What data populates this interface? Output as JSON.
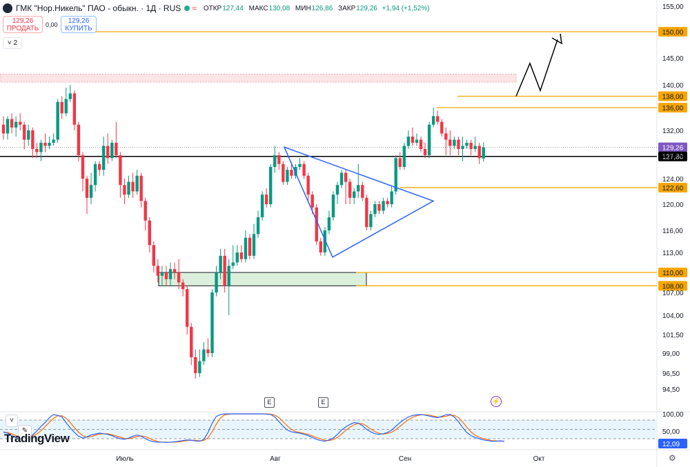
{
  "header": {
    "title": "ГМК \"Нор.Никель\" ПАО - обыкн. · 1Д · RUS",
    "ohlc": [
      {
        "key": "ОТКР",
        "value": "127,44"
      },
      {
        "key": "МАКС",
        "value": "130,08"
      },
      {
        "key": "МИН",
        "value": "126,86"
      },
      {
        "key": "ЗАКР",
        "value": "129,26"
      },
      {
        "key": "",
        "value": "+1,94 (+1,52%)"
      }
    ]
  },
  "trade": {
    "sell_price": "129,26",
    "sell_label": "ПРОДАТЬ",
    "spread": "0,00",
    "buy_price": "129,26",
    "buy_label": "КУПИТЬ"
  },
  "indicators_count": "2",
  "logo_text": "TradingView",
  "event_markers": [
    "E",
    "E"
  ],
  "colors": {
    "up": "#089981",
    "down": "#f23645",
    "level": "#f7a600",
    "pattern": "#2962ff"
  },
  "chart_data": {
    "type": "candlestick",
    "x_labels": [
      "Июль",
      "Авг",
      "Сен",
      "Окт"
    ],
    "y_ticks": [
      "155,00",
      "150,00",
      "145,00",
      "140,00",
      "136,00",
      "132,00",
      "128,00",
      "124,00",
      "120,00",
      "116,00",
      "113,00",
      "110,00",
      "107,00",
      "104,00",
      "101,50",
      "99,00",
      "96,50",
      "94,50"
    ],
    "candles": [
      {
        "o": 133.0,
        "c": 131.5,
        "h": 134.5,
        "l": 130.5
      },
      {
        "o": 131.5,
        "c": 134.0,
        "h": 134.5,
        "l": 130.5
      },
      {
        "o": 134.0,
        "c": 132.5,
        "h": 135.0,
        "l": 131.5
      },
      {
        "o": 132.5,
        "c": 133.5,
        "h": 134.5,
        "l": 131.0
      },
      {
        "o": 133.5,
        "c": 133.0,
        "h": 135.0,
        "l": 132.0
      },
      {
        "o": 133.0,
        "c": 130.5,
        "h": 133.5,
        "l": 129.0
      },
      {
        "o": 130.5,
        "c": 132.0,
        "h": 133.0,
        "l": 129.5
      },
      {
        "o": 132.0,
        "c": 129.0,
        "h": 132.5,
        "l": 127.5
      },
      {
        "o": 129.0,
        "c": 128.5,
        "h": 130.0,
        "l": 127.5
      },
      {
        "o": 128.5,
        "c": 130.0,
        "h": 130.5,
        "l": 127.0
      },
      {
        "o": 130.0,
        "c": 129.5,
        "h": 131.5,
        "l": 128.5
      },
      {
        "o": 129.5,
        "c": 130.0,
        "h": 131.0,
        "l": 129.0
      },
      {
        "o": 130.0,
        "c": 130.5,
        "h": 131.5,
        "l": 129.5
      },
      {
        "o": 130.5,
        "c": 137.0,
        "h": 137.5,
        "l": 130.0
      },
      {
        "o": 137.0,
        "c": 135.0,
        "h": 138.0,
        "l": 134.0
      },
      {
        "o": 135.0,
        "c": 137.5,
        "h": 139.5,
        "l": 134.5
      },
      {
        "o": 137.5,
        "c": 138.5,
        "h": 140.0,
        "l": 137.0
      },
      {
        "o": 138.5,
        "c": 133.0,
        "h": 139.0,
        "l": 132.0
      },
      {
        "o": 133.0,
        "c": 128.0,
        "h": 133.5,
        "l": 127.0
      },
      {
        "o": 128.0,
        "c": 124.0,
        "h": 128.5,
        "l": 122.0
      },
      {
        "o": 124.0,
        "c": 121.0,
        "h": 124.5,
        "l": 118.5
      },
      {
        "o": 121.0,
        "c": 123.0,
        "h": 125.0,
        "l": 120.0
      },
      {
        "o": 123.0,
        "c": 126.5,
        "h": 127.0,
        "l": 122.0
      },
      {
        "o": 126.5,
        "c": 125.5,
        "h": 127.0,
        "l": 124.5
      },
      {
        "o": 125.5,
        "c": 129.5,
        "h": 131.0,
        "l": 124.5
      },
      {
        "o": 129.5,
        "c": 127.5,
        "h": 131.5,
        "l": 126.5
      },
      {
        "o": 127.5,
        "c": 130.0,
        "h": 130.5,
        "l": 127.0
      },
      {
        "o": 130.0,
        "c": 128.0,
        "h": 133.5,
        "l": 127.5
      },
      {
        "o": 128.0,
        "c": 123.0,
        "h": 128.5,
        "l": 121.0
      },
      {
        "o": 123.0,
        "c": 121.5,
        "h": 124.0,
        "l": 120.0
      },
      {
        "o": 121.5,
        "c": 123.5,
        "h": 124.5,
        "l": 121.0
      },
      {
        "o": 123.5,
        "c": 122.0,
        "h": 125.0,
        "l": 121.0
      },
      {
        "o": 122.0,
        "c": 124.5,
        "h": 125.5,
        "l": 121.5
      },
      {
        "o": 124.5,
        "c": 120.5,
        "h": 125.0,
        "l": 119.5
      },
      {
        "o": 120.5,
        "c": 117.5,
        "h": 121.0,
        "l": 116.0
      },
      {
        "o": 117.5,
        "c": 114.0,
        "h": 118.0,
        "l": 113.0
      },
      {
        "o": 114.0,
        "c": 111.0,
        "h": 114.5,
        "l": 110.0
      },
      {
        "o": 111.0,
        "c": 109.5,
        "h": 112.0,
        "l": 108.5
      },
      {
        "o": 109.5,
        "c": 110.0,
        "h": 111.0,
        "l": 108.0
      },
      {
        "o": 110.0,
        "c": 109.0,
        "h": 111.0,
        "l": 108.0
      },
      {
        "o": 109.0,
        "c": 110.5,
        "h": 111.5,
        "l": 108.0
      },
      {
        "o": 110.5,
        "c": 110.0,
        "h": 111.5,
        "l": 109.0
      },
      {
        "o": 110.0,
        "c": 108.5,
        "h": 112.0,
        "l": 107.5
      },
      {
        "o": 108.5,
        "c": 107.5,
        "h": 109.0,
        "l": 106.5
      },
      {
        "o": 107.5,
        "c": 102.5,
        "h": 108.0,
        "l": 101.5
      },
      {
        "o": 102.5,
        "c": 98.5,
        "h": 103.0,
        "l": 97.5
      },
      {
        "o": 98.5,
        "c": 96.5,
        "h": 99.5,
        "l": 95.8
      },
      {
        "o": 96.5,
        "c": 98.0,
        "h": 99.5,
        "l": 96.0
      },
      {
        "o": 98.0,
        "c": 99.5,
        "h": 100.5,
        "l": 97.5
      },
      {
        "o": 99.5,
        "c": 99.0,
        "h": 101.0,
        "l": 98.5
      },
      {
        "o": 99.0,
        "c": 107.0,
        "h": 107.5,
        "l": 98.5
      },
      {
        "o": 107.0,
        "c": 110.0,
        "h": 111.0,
        "l": 106.5
      },
      {
        "o": 110.0,
        "c": 112.5,
        "h": 113.5,
        "l": 109.0
      },
      {
        "o": 112.5,
        "c": 108.0,
        "h": 113.5,
        "l": 107.0
      },
      {
        "o": 108.0,
        "c": 111.0,
        "h": 112.0,
        "l": 104.0
      },
      {
        "o": 111.0,
        "c": 111.5,
        "h": 114.0,
        "l": 110.5
      },
      {
        "o": 111.5,
        "c": 113.0,
        "h": 114.0,
        "l": 111.0
      },
      {
        "o": 113.0,
        "c": 112.0,
        "h": 114.0,
        "l": 111.5
      },
      {
        "o": 112.0,
        "c": 115.0,
        "h": 116.0,
        "l": 111.5
      },
      {
        "o": 115.0,
        "c": 112.5,
        "h": 115.5,
        "l": 112.0
      },
      {
        "o": 112.5,
        "c": 115.5,
        "h": 117.0,
        "l": 112.0
      },
      {
        "o": 115.5,
        "c": 118.0,
        "h": 119.0,
        "l": 115.0
      },
      {
        "o": 118.0,
        "c": 121.5,
        "h": 122.0,
        "l": 117.5
      },
      {
        "o": 121.5,
        "c": 120.0,
        "h": 122.5,
        "l": 119.5
      },
      {
        "o": 120.0,
        "c": 126.0,
        "h": 126.5,
        "l": 119.5
      },
      {
        "o": 126.0,
        "c": 128.0,
        "h": 129.5,
        "l": 125.0
      },
      {
        "o": 128.0,
        "c": 126.5,
        "h": 128.5,
        "l": 125.5
      },
      {
        "o": 126.5,
        "c": 123.5,
        "h": 127.0,
        "l": 123.0
      },
      {
        "o": 123.5,
        "c": 125.5,
        "h": 126.0,
        "l": 123.0
      },
      {
        "o": 125.5,
        "c": 124.5,
        "h": 126.5,
        "l": 124.0
      },
      {
        "o": 124.5,
        "c": 126.0,
        "h": 126.5,
        "l": 124.0
      },
      {
        "o": 126.0,
        "c": 126.5,
        "h": 127.5,
        "l": 125.5
      },
      {
        "o": 126.5,
        "c": 124.5,
        "h": 127.0,
        "l": 124.0
      },
      {
        "o": 124.5,
        "c": 121.5,
        "h": 125.0,
        "l": 120.5
      },
      {
        "o": 121.5,
        "c": 119.5,
        "h": 122.0,
        "l": 118.5
      },
      {
        "o": 119.5,
        "c": 114.5,
        "h": 120.0,
        "l": 114.0
      },
      {
        "o": 114.5,
        "c": 113.0,
        "h": 115.0,
        "l": 112.5
      },
      {
        "o": 113.0,
        "c": 116.0,
        "h": 116.5,
        "l": 112.5
      },
      {
        "o": 116.0,
        "c": 118.0,
        "h": 119.0,
        "l": 115.5
      },
      {
        "o": 118.0,
        "c": 121.5,
        "h": 122.0,
        "l": 117.5
      },
      {
        "o": 121.5,
        "c": 123.0,
        "h": 123.5,
        "l": 120.0
      },
      {
        "o": 123.0,
        "c": 125.0,
        "h": 125.5,
        "l": 122.5
      },
      {
        "o": 125.0,
        "c": 123.5,
        "h": 125.5,
        "l": 120.0
      },
      {
        "o": 123.5,
        "c": 121.0,
        "h": 124.0,
        "l": 120.0
      },
      {
        "o": 121.0,
        "c": 122.0,
        "h": 122.5,
        "l": 120.0
      },
      {
        "o": 122.0,
        "c": 123.0,
        "h": 126.5,
        "l": 121.0
      },
      {
        "o": 123.0,
        "c": 121.0,
        "h": 123.5,
        "l": 120.5
      },
      {
        "o": 121.0,
        "c": 116.5,
        "h": 121.5,
        "l": 116.0
      },
      {
        "o": 116.5,
        "c": 118.5,
        "h": 119.0,
        "l": 116.0
      },
      {
        "o": 118.5,
        "c": 120.0,
        "h": 120.5,
        "l": 118.0
      },
      {
        "o": 120.0,
        "c": 119.0,
        "h": 120.5,
        "l": 118.5
      },
      {
        "o": 119.0,
        "c": 120.5,
        "h": 121.0,
        "l": 118.5
      },
      {
        "o": 120.5,
        "c": 120.0,
        "h": 121.0,
        "l": 119.5
      },
      {
        "o": 120.0,
        "c": 122.0,
        "h": 123.0,
        "l": 119.5
      },
      {
        "o": 122.0,
        "c": 127.5,
        "h": 128.0,
        "l": 121.5
      },
      {
        "o": 127.5,
        "c": 126.0,
        "h": 128.5,
        "l": 125.5
      },
      {
        "o": 126.0,
        "c": 129.5,
        "h": 130.0,
        "l": 125.5
      },
      {
        "o": 129.5,
        "c": 131.0,
        "h": 132.0,
        "l": 129.0
      },
      {
        "o": 131.0,
        "c": 130.0,
        "h": 132.5,
        "l": 129.5
      },
      {
        "o": 130.0,
        "c": 130.5,
        "h": 131.5,
        "l": 129.5
      },
      {
        "o": 130.5,
        "c": 129.0,
        "h": 131.0,
        "l": 128.5
      },
      {
        "o": 129.0,
        "c": 128.0,
        "h": 130.0,
        "l": 127.5
      },
      {
        "o": 128.0,
        "c": 133.0,
        "h": 133.5,
        "l": 127.5
      },
      {
        "o": 133.0,
        "c": 134.5,
        "h": 136.0,
        "l": 132.5
      },
      {
        "o": 134.5,
        "c": 133.5,
        "h": 135.5,
        "l": 133.0
      },
      {
        "o": 133.5,
        "c": 131.5,
        "h": 134.0,
        "l": 131.0
      },
      {
        "o": 131.5,
        "c": 130.5,
        "h": 132.5,
        "l": 128.0
      },
      {
        "o": 130.5,
        "c": 129.5,
        "h": 132.0,
        "l": 128.0
      },
      {
        "o": 129.5,
        "c": 130.5,
        "h": 131.0,
        "l": 129.0
      },
      {
        "o": 130.5,
        "c": 129.0,
        "h": 131.0,
        "l": 128.0
      },
      {
        "o": 129.0,
        "c": 129.5,
        "h": 131.0,
        "l": 127.0
      },
      {
        "o": 129.5,
        "c": 130.0,
        "h": 130.5,
        "l": 129.0
      },
      {
        "o": 130.0,
        "c": 129.0,
        "h": 130.5,
        "l": 128.0
      },
      {
        "o": 129.0,
        "c": 129.5,
        "h": 131.0,
        "l": 128.5
      },
      {
        "o": 129.5,
        "c": 127.5,
        "h": 130.0,
        "l": 126.5
      },
      {
        "o": 127.44,
        "c": 129.26,
        "h": 130.08,
        "l": 126.86
      }
    ],
    "levels": [
      {
        "value": 150.0,
        "label": "150,00"
      },
      {
        "value": 138.0,
        "label": "138,00"
      },
      {
        "value": 136.0,
        "label": "136,00"
      },
      {
        "value": 122.6,
        "label": "122,60"
      },
      {
        "value": 110.0,
        "label": "110,00"
      },
      {
        "value": 108.0,
        "label": "108,00"
      }
    ],
    "support_line": {
      "value": 127.8,
      "label": "127,80"
    },
    "current_price": {
      "value": 129.26,
      "label": "129,26"
    },
    "resistance_zone": [
      140.5,
      142.0
    ],
    "support_zone": [
      108.0,
      110.0
    ],
    "triangle": [
      [
        19,
        129.3
      ],
      [
        33,
        112.3
      ],
      [
        42,
        120.5
      ]
    ],
    "projection": [
      [
        96,
        138.0
      ],
      [
        100,
        144.0
      ],
      [
        104,
        139.0
      ],
      [
        110,
        148.5
      ]
    ],
    "stochastic": {
      "y_ticks": [
        "100,00",
        "50,00",
        "12,09"
      ],
      "band": [
        20,
        80
      ],
      "k": [
        42,
        38,
        30,
        25,
        24,
        26,
        28,
        32,
        45,
        60,
        72,
        88,
        98,
        95,
        90,
        72,
        55,
        40,
        28,
        22,
        26,
        32,
        35,
        38,
        36,
        34,
        30,
        24,
        20,
        18,
        22,
        28,
        32,
        28,
        20,
        14,
        10,
        9,
        9,
        8,
        9,
        10,
        12,
        14,
        16,
        15,
        13,
        12,
        18,
        40,
        70,
        92,
        98,
        100,
        100,
        100,
        100,
        100,
        100,
        100,
        100,
        100,
        100,
        99,
        98,
        90,
        75,
        60,
        48,
        42,
        40,
        38,
        34,
        30,
        24,
        18,
        14,
        12,
        16,
        22,
        34,
        48,
        58,
        66,
        72,
        70,
        62,
        50,
        42,
        36,
        34,
        36,
        40,
        48,
        60,
        72,
        82,
        90,
        95,
        97,
        98,
        96,
        93,
        90,
        88,
        92,
        97,
        98,
        90,
        75,
        56,
        40,
        30,
        24,
        20,
        16,
        14,
        12,
        12,
        13,
        12
      ],
      "d": [
        40,
        40,
        36,
        30,
        26,
        25,
        26,
        29,
        35,
        46,
        59,
        73,
        86,
        94,
        94,
        86,
        72,
        56,
        41,
        30,
        25,
        27,
        31,
        35,
        36,
        36,
        33,
        29,
        25,
        21,
        20,
        23,
        27,
        29,
        27,
        21,
        15,
        11,
        9,
        9,
        9,
        9,
        10,
        12,
        14,
        15,
        15,
        13,
        14,
        23,
        43,
        67,
        87,
        97,
        99,
        100,
        100,
        100,
        100,
        100,
        100,
        100,
        100,
        100,
        99,
        96,
        88,
        75,
        61,
        50,
        43,
        40,
        37,
        34,
        29,
        24,
        19,
        15,
        14,
        17,
        24,
        35,
        47,
        57,
        65,
        69,
        68,
        61,
        51,
        43,
        37,
        35,
        37,
        41,
        49,
        60,
        71,
        81,
        89,
        94,
        97,
        97,
        96,
        93,
        90,
        90,
        92,
        96,
        95,
        88,
        74,
        57,
        42,
        31,
        25,
        20,
        17,
        14,
        13,
        12,
        12
      ]
    }
  }
}
